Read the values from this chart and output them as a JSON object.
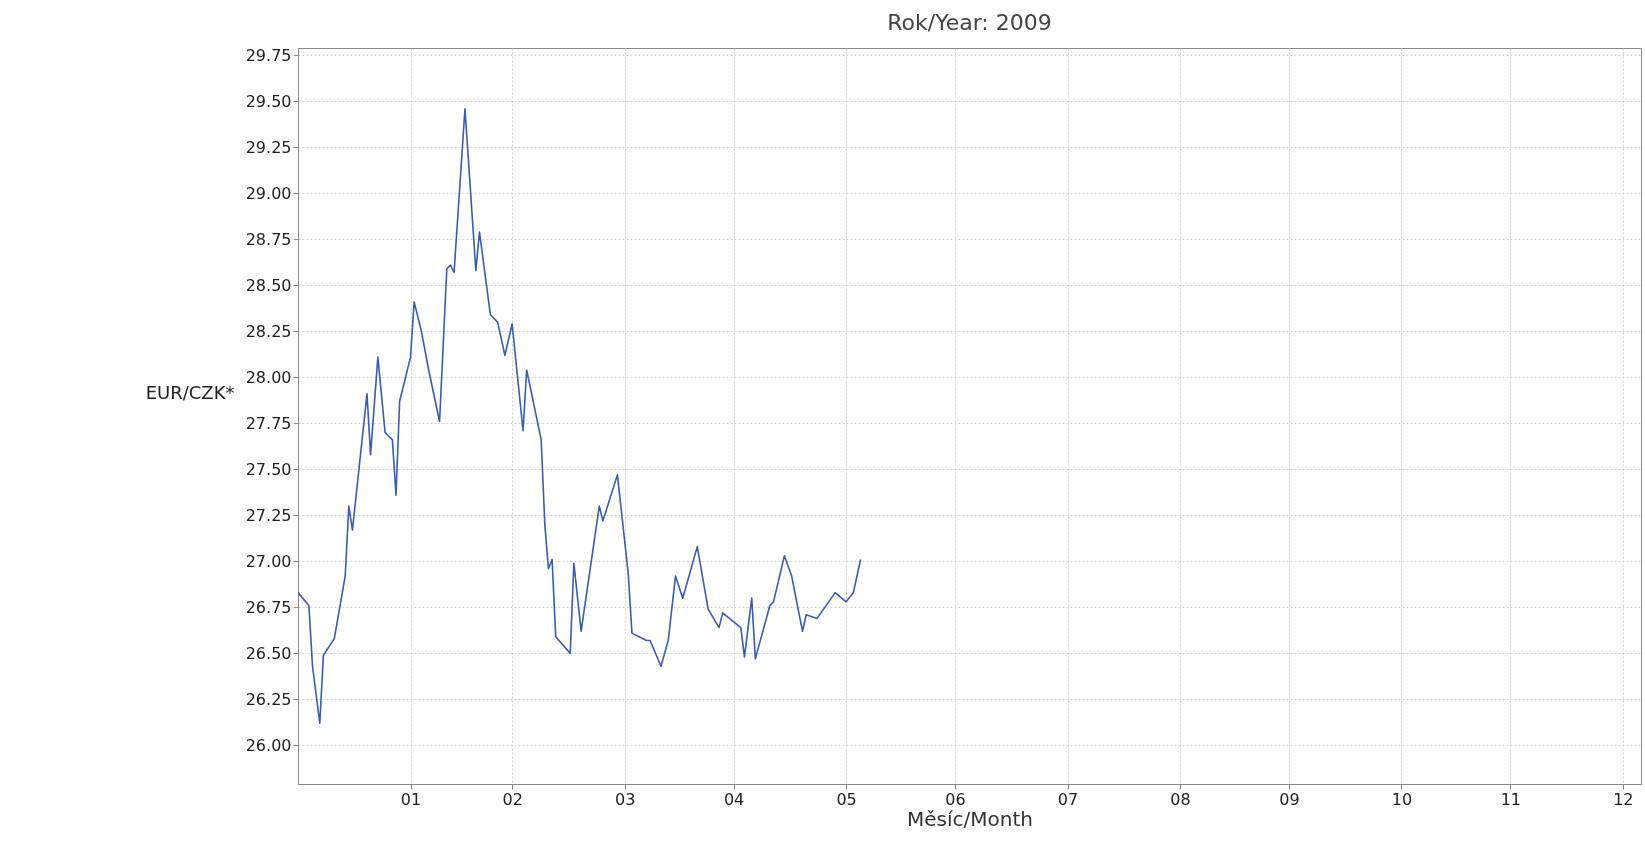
{
  "chart_data": {
    "type": "line",
    "title": "Rok/Year: 2009",
    "xlabel": "Měsíc/Month",
    "ylabel": "EUR/CZK*",
    "x": [
      "2009-01-01",
      "2009-01-04",
      "2009-01-05",
      "2009-01-07",
      "2009-01-08",
      "2009-01-11",
      "2009-01-14",
      "2009-01-15",
      "2009-01-16",
      "2009-01-20",
      "2009-01-21",
      "2009-01-23",
      "2009-01-25",
      "2009-01-27",
      "2009-01-28",
      "2009-01-29",
      "2009-02-01",
      "2009-02-02",
      "2009-02-04",
      "2009-02-06",
      "2009-02-09",
      "2009-02-11",
      "2009-02-12",
      "2009-02-13",
      "2009-02-16",
      "2009-02-19",
      "2009-02-20",
      "2009-02-23",
      "2009-02-25",
      "2009-02-27",
      "2009-03-01",
      "2009-03-04",
      "2009-03-05",
      "2009-03-09",
      "2009-03-10",
      "2009-03-11",
      "2009-03-12",
      "2009-03-13",
      "2009-03-17",
      "2009-03-18",
      "2009-03-20",
      "2009-03-25",
      "2009-03-26",
      "2009-03-30",
      "2009-04-02",
      "2009-04-03",
      "2009-04-07",
      "2009-04-08",
      "2009-04-11",
      "2009-04-13",
      "2009-04-15",
      "2009-04-17",
      "2009-04-21",
      "2009-04-24",
      "2009-04-27",
      "2009-04-28",
      "2009-05-03",
      "2009-05-04",
      "2009-05-06",
      "2009-05-07",
      "2009-05-11",
      "2009-05-12",
      "2009-05-15",
      "2009-05-17",
      "2009-05-20",
      "2009-05-21",
      "2009-05-24",
      "2009-05-29",
      "2009-06-01",
      "2009-06-03",
      "2009-06-05"
    ],
    "series": [
      {
        "color": "#3a5dab",
        "values": [
          26.83,
          26.76,
          26.43,
          26.12,
          26.49,
          26.58,
          26.92,
          27.3,
          27.17,
          27.91,
          27.58,
          28.11,
          27.7,
          27.66,
          27.36,
          27.87,
          28.11,
          28.41,
          28.25,
          28.04,
          27.76,
          28.59,
          28.61,
          28.57,
          29.46,
          28.58,
          28.79,
          28.34,
          28.3,
          28.12,
          28.29,
          27.71,
          28.04,
          27.66,
          27.2,
          26.96,
          27.01,
          26.59,
          26.5,
          26.99,
          26.62,
          27.3,
          27.22,
          27.47,
          26.93,
          26.61,
          26.57,
          26.57,
          26.43,
          26.57,
          26.92,
          26.8,
          27.08,
          26.74,
          26.64,
          26.72,
          26.64,
          26.48,
          26.8,
          26.47,
          26.76,
          26.78,
          27.03,
          26.92,
          26.62,
          26.71,
          26.69,
          26.83,
          26.78,
          26.83,
          27.01
        ]
      }
    ],
    "xlim": [
      "2009-01-01",
      "2010-01-06"
    ],
    "xticks": [
      {
        "value": "2009-02-01",
        "label": "01"
      },
      {
        "value": "2009-03-01",
        "label": "02"
      },
      {
        "value": "2009-04-01",
        "label": "03"
      },
      {
        "value": "2009-05-01",
        "label": "04"
      },
      {
        "value": "2009-06-01",
        "label": "05"
      },
      {
        "value": "2009-07-01",
        "label": "06"
      },
      {
        "value": "2009-08-01",
        "label": "07"
      },
      {
        "value": "2009-09-01",
        "label": "08"
      },
      {
        "value": "2009-10-01",
        "label": "09"
      },
      {
        "value": "2009-11-01",
        "label": "10"
      },
      {
        "value": "2009-12-01",
        "label": "11"
      },
      {
        "value": "2010-01-01",
        "label": "12"
      }
    ],
    "ylim": [
      25.79,
      29.79
    ],
    "yticks": [
      {
        "value": 26,
        "label": "26.00"
      },
      {
        "value": 26.25,
        "label": "26.25"
      },
      {
        "value": 26.5,
        "label": "26.50"
      },
      {
        "value": 26.75,
        "label": "26.75"
      },
      {
        "value": 27,
        "label": "27.00"
      },
      {
        "value": 27.25,
        "label": "27.25"
      },
      {
        "value": 27.5,
        "label": "27.50"
      },
      {
        "value": 27.75,
        "label": "27.75"
      },
      {
        "value": 28,
        "label": "28.00"
      },
      {
        "value": 28.25,
        "label": "28.25"
      },
      {
        "value": 28.5,
        "label": "28.50"
      },
      {
        "value": 28.75,
        "label": "28.75"
      },
      {
        "value": 29,
        "label": "29.00"
      },
      {
        "value": 29.25,
        "label": "29.25"
      },
      {
        "value": 29.5,
        "label": "29.50"
      },
      {
        "value": 29.75,
        "label": "29.75"
      }
    ],
    "grid": true,
    "marker": "none",
    "line_style": "solid"
  }
}
